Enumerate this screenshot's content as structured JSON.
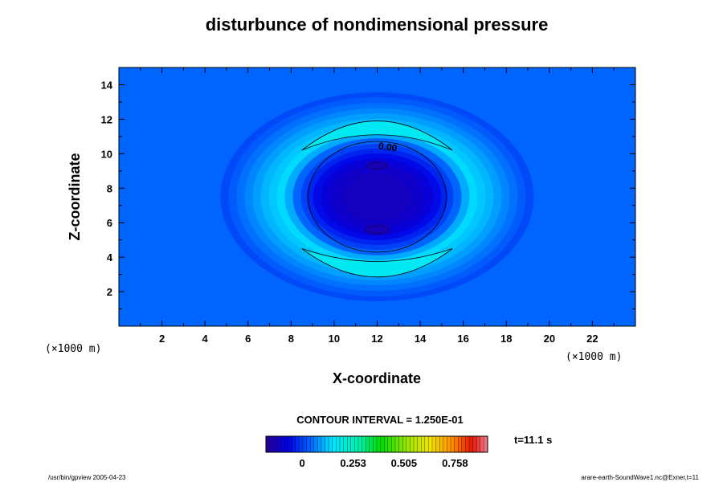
{
  "chart_data": {
    "type": "heatmap",
    "title": "disturbunce of nondimensional pressure",
    "xlabel": "X-coordinate",
    "ylabel": "Z-coordinate",
    "x_unit": "(×1000 m)",
    "y_unit": "(×1000 m)",
    "xlim": [
      0,
      24
    ],
    "ylim": [
      0,
      15
    ],
    "xticks": [
      2,
      4,
      6,
      8,
      10,
      12,
      14,
      16,
      18,
      20,
      22
    ],
    "yticks": [
      2,
      4,
      6,
      8,
      10,
      12,
      14
    ],
    "grid": false,
    "contour_interval_label": "CONTOUR INTERVAL = 1.250E-01",
    "contour_label": "0.00",
    "colorbar": {
      "min": -0.18,
      "max": 0.92,
      "tick_values": [
        0,
        0.253,
        0.505,
        0.758
      ],
      "tick_labels": [
        "0",
        "0.253",
        "0.505",
        "0.758"
      ]
    },
    "time_label": "t=11.1 s",
    "footer_left": "/usr/bin/gpview 2005-04-23",
    "footer_right": "arare-earth-SoundWave1.nc@Exner,t=11",
    "field": {
      "description_values": {
        "background": 0.0,
        "center_min": -0.125,
        "ring_max": 0.14
      },
      "center": [
        12,
        7.5
      ]
    }
  }
}
